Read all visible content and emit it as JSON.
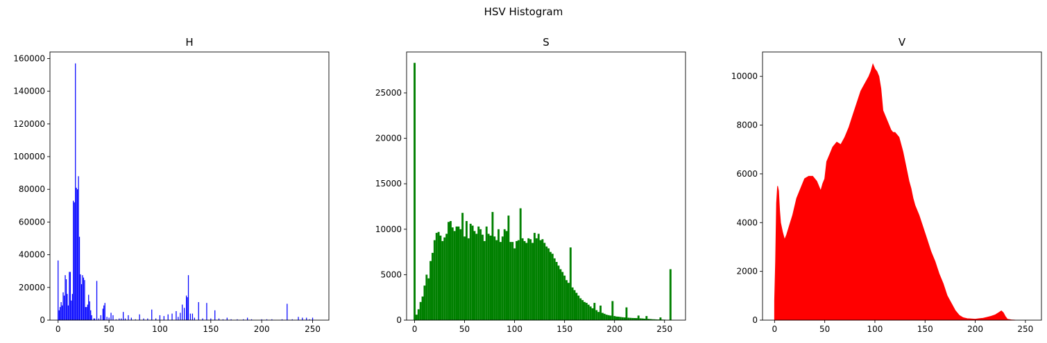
{
  "figure": {
    "title": "HSV Histogram"
  },
  "chart_data": [
    {
      "type": "bar",
      "title": "H",
      "color": "#0000ff",
      "xlim": [
        -8,
        266
      ],
      "ylim": [
        0,
        164000
      ],
      "xticks": [
        0,
        50,
        100,
        150,
        200,
        250
      ],
      "yticks": [
        0,
        20000,
        40000,
        60000,
        80000,
        100000,
        120000,
        140000,
        160000
      ],
      "points": [
        [
          0,
          36500
        ],
        [
          1,
          6000
        ],
        [
          2,
          8000
        ],
        [
          3,
          11000
        ],
        [
          4,
          9000
        ],
        [
          5,
          17000
        ],
        [
          6,
          15000
        ],
        [
          7,
          27500
        ],
        [
          8,
          25000
        ],
        [
          9,
          16000
        ],
        [
          10,
          9000
        ],
        [
          11,
          29500
        ],
        [
          12,
          29500
        ],
        [
          13,
          12000
        ],
        [
          14,
          16000
        ],
        [
          15,
          73000
        ],
        [
          16,
          72000
        ],
        [
          17,
          157000
        ],
        [
          18,
          81000
        ],
        [
          19,
          80000
        ],
        [
          20,
          88000
        ],
        [
          21,
          51000
        ],
        [
          22,
          28000
        ],
        [
          23,
          22000
        ],
        [
          24,
          27500
        ],
        [
          25,
          26000
        ],
        [
          26,
          24500
        ],
        [
          27,
          8000
        ],
        [
          28,
          8000
        ],
        [
          29,
          9500
        ],
        [
          30,
          15500
        ],
        [
          31,
          11500
        ],
        [
          32,
          6000
        ],
        [
          33,
          3000
        ],
        [
          35,
          1000
        ],
        [
          36,
          1000
        ],
        [
          38,
          24000
        ],
        [
          40,
          1000
        ],
        [
          42,
          3000
        ],
        [
          44,
          7000
        ],
        [
          45,
          9000
        ],
        [
          46,
          10500
        ],
        [
          48,
          2000
        ],
        [
          50,
          1500
        ],
        [
          52,
          4500
        ],
        [
          54,
          3000
        ],
        [
          57,
          500
        ],
        [
          60,
          1000
        ],
        [
          62,
          1000
        ],
        [
          64,
          5000
        ],
        [
          66,
          1000
        ],
        [
          69,
          3000
        ],
        [
          72,
          1500
        ],
        [
          76,
          500
        ],
        [
          80,
          3500
        ],
        [
          84,
          1000
        ],
        [
          88,
          1000
        ],
        [
          92,
          6500
        ],
        [
          96,
          1000
        ],
        [
          100,
          3000
        ],
        [
          104,
          2500
        ],
        [
          108,
          3500
        ],
        [
          112,
          4000
        ],
        [
          116,
          5500
        ],
        [
          118,
          2000
        ],
        [
          120,
          4500
        ],
        [
          122,
          9500
        ],
        [
          124,
          7500
        ],
        [
          126,
          15000
        ],
        [
          127,
          14000
        ],
        [
          128,
          27500
        ],
        [
          130,
          4000
        ],
        [
          132,
          4000
        ],
        [
          134,
          1500
        ],
        [
          138,
          11000
        ],
        [
          142,
          1000
        ],
        [
          146,
          10500
        ],
        [
          150,
          1000
        ],
        [
          154,
          6000
        ],
        [
          158,
          1000
        ],
        [
          162,
          500
        ],
        [
          166,
          1500
        ],
        [
          170,
          500
        ],
        [
          176,
          500
        ],
        [
          182,
          500
        ],
        [
          186,
          1500
        ],
        [
          190,
          500
        ],
        [
          200,
          500
        ],
        [
          205,
          500
        ],
        [
          210,
          500
        ],
        [
          220,
          500
        ],
        [
          225,
          10000
        ],
        [
          230,
          500
        ],
        [
          236,
          2000
        ],
        [
          240,
          1500
        ],
        [
          244,
          1500
        ],
        [
          247,
          500
        ],
        [
          250,
          1500
        ]
      ]
    },
    {
      "type": "bar",
      "title": "S",
      "color": "#008000",
      "xlim": [
        -8,
        271
      ],
      "ylim": [
        0,
        29500
      ],
      "xticks": [
        0,
        50,
        100,
        150,
        200,
        250
      ],
      "yticks": [
        0,
        5000,
        10000,
        15000,
        20000,
        25000
      ],
      "points": [
        [
          0,
          28300
        ],
        [
          2,
          600
        ],
        [
          4,
          1200
        ],
        [
          6,
          2000
        ],
        [
          8,
          2600
        ],
        [
          10,
          3800
        ],
        [
          12,
          5000
        ],
        [
          14,
          4600
        ],
        [
          16,
          6500
        ],
        [
          18,
          7400
        ],
        [
          20,
          8800
        ],
        [
          22,
          9600
        ],
        [
          24,
          9700
        ],
        [
          26,
          9300
        ],
        [
          28,
          8700
        ],
        [
          30,
          9100
        ],
        [
          32,
          9500
        ],
        [
          34,
          10800
        ],
        [
          36,
          10900
        ],
        [
          38,
          10200
        ],
        [
          40,
          9800
        ],
        [
          42,
          10300
        ],
        [
          44,
          10300
        ],
        [
          46,
          10000
        ],
        [
          48,
          11800
        ],
        [
          50,
          9200
        ],
        [
          52,
          10900
        ],
        [
          54,
          9000
        ],
        [
          56,
          10600
        ],
        [
          58,
          10400
        ],
        [
          60,
          9800
        ],
        [
          62,
          9500
        ],
        [
          64,
          10300
        ],
        [
          66,
          10000
        ],
        [
          68,
          9400
        ],
        [
          70,
          8700
        ],
        [
          72,
          10300
        ],
        [
          74,
          9500
        ],
        [
          76,
          9300
        ],
        [
          78,
          11900
        ],
        [
          80,
          9200
        ],
        [
          82,
          8800
        ],
        [
          84,
          10000
        ],
        [
          86,
          8600
        ],
        [
          88,
          9200
        ],
        [
          90,
          10000
        ],
        [
          92,
          9800
        ],
        [
          94,
          11500
        ],
        [
          96,
          8600
        ],
        [
          98,
          8600
        ],
        [
          100,
          7900
        ],
        [
          102,
          8700
        ],
        [
          104,
          8800
        ],
        [
          106,
          12300
        ],
        [
          108,
          9000
        ],
        [
          110,
          8700
        ],
        [
          112,
          8500
        ],
        [
          114,
          9000
        ],
        [
          116,
          8900
        ],
        [
          118,
          8500
        ],
        [
          120,
          9600
        ],
        [
          122,
          9000
        ],
        [
          124,
          9500
        ],
        [
          126,
          8800
        ],
        [
          128,
          8900
        ],
        [
          130,
          8500
        ],
        [
          132,
          8100
        ],
        [
          134,
          7900
        ],
        [
          136,
          7500
        ],
        [
          138,
          7300
        ],
        [
          140,
          6800
        ],
        [
          142,
          6400
        ],
        [
          144,
          6000
        ],
        [
          146,
          5600
        ],
        [
          148,
          5300
        ],
        [
          150,
          4900
        ],
        [
          152,
          4400
        ],
        [
          154,
          4100
        ],
        [
          156,
          8000
        ],
        [
          158,
          3600
        ],
        [
          160,
          3300
        ],
        [
          162,
          3000
        ],
        [
          164,
          2700
        ],
        [
          166,
          2400
        ],
        [
          168,
          2200
        ],
        [
          170,
          2000
        ],
        [
          172,
          1900
        ],
        [
          174,
          1700
        ],
        [
          176,
          1500
        ],
        [
          178,
          1300
        ],
        [
          180,
          1900
        ],
        [
          182,
          1100
        ],
        [
          184,
          900
        ],
        [
          186,
          1600
        ],
        [
          188,
          800
        ],
        [
          190,
          700
        ],
        [
          192,
          600
        ],
        [
          194,
          550
        ],
        [
          196,
          500
        ],
        [
          198,
          2100
        ],
        [
          200,
          450
        ],
        [
          202,
          400
        ],
        [
          204,
          380
        ],
        [
          206,
          350
        ],
        [
          208,
          320
        ],
        [
          210,
          300
        ],
        [
          212,
          1400
        ],
        [
          214,
          270
        ],
        [
          216,
          250
        ],
        [
          218,
          240
        ],
        [
          220,
          230
        ],
        [
          222,
          220
        ],
        [
          224,
          500
        ],
        [
          226,
          200
        ],
        [
          228,
          180
        ],
        [
          230,
          160
        ],
        [
          232,
          450
        ],
        [
          234,
          140
        ],
        [
          236,
          120
        ],
        [
          238,
          100
        ],
        [
          240,
          90
        ],
        [
          242,
          80
        ],
        [
          244,
          70
        ],
        [
          246,
          300
        ],
        [
          248,
          60
        ],
        [
          250,
          50
        ],
        [
          252,
          40
        ],
        [
          254,
          30
        ],
        [
          256,
          5600
        ]
      ]
    },
    {
      "type": "area",
      "title": "V",
      "color": "#ff0000",
      "xlim": [
        -12,
        266
      ],
      "ylim": [
        0,
        11000
      ],
      "xticks": [
        0,
        50,
        100,
        150,
        200,
        250
      ],
      "yticks": [
        0,
        2000,
        4000,
        6000,
        8000,
        10000
      ],
      "points": [
        [
          0,
          800
        ],
        [
          1,
          2400
        ],
        [
          2,
          4800
        ],
        [
          3,
          5500
        ],
        [
          4,
          5300
        ],
        [
          5,
          4500
        ],
        [
          6,
          4000
        ],
        [
          8,
          3600
        ],
        [
          10,
          3300
        ],
        [
          12,
          3500
        ],
        [
          15,
          3900
        ],
        [
          18,
          4300
        ],
        [
          22,
          5000
        ],
        [
          26,
          5400
        ],
        [
          30,
          5800
        ],
        [
          34,
          5900
        ],
        [
          38,
          5900
        ],
        [
          42,
          5700
        ],
        [
          46,
          5300
        ],
        [
          48,
          5600
        ],
        [
          50,
          5800
        ],
        [
          52,
          6500
        ],
        [
          55,
          6800
        ],
        [
          58,
          7100
        ],
        [
          62,
          7300
        ],
        [
          66,
          7200
        ],
        [
          70,
          7500
        ],
        [
          74,
          7900
        ],
        [
          78,
          8400
        ],
        [
          82,
          8900
        ],
        [
          86,
          9400
        ],
        [
          90,
          9700
        ],
        [
          94,
          10000
        ],
        [
          96,
          10200
        ],
        [
          98,
          10500
        ],
        [
          100,
          10300
        ],
        [
          102,
          10200
        ],
        [
          104,
          10000
        ],
        [
          106,
          9500
        ],
        [
          108,
          8600
        ],
        [
          110,
          8400
        ],
        [
          112,
          8200
        ],
        [
          114,
          8000
        ],
        [
          116,
          7800
        ],
        [
          118,
          7700
        ],
        [
          120,
          7700
        ],
        [
          122,
          7600
        ],
        [
          124,
          7500
        ],
        [
          126,
          7200
        ],
        [
          128,
          6900
        ],
        [
          130,
          6500
        ],
        [
          132,
          6100
        ],
        [
          134,
          5700
        ],
        [
          136,
          5400
        ],
        [
          138,
          5000
        ],
        [
          140,
          4700
        ],
        [
          144,
          4300
        ],
        [
          148,
          3800
        ],
        [
          152,
          3300
        ],
        [
          156,
          2800
        ],
        [
          160,
          2400
        ],
        [
          164,
          1900
        ],
        [
          168,
          1500
        ],
        [
          172,
          1000
        ],
        [
          176,
          700
        ],
        [
          180,
          400
        ],
        [
          184,
          200
        ],
        [
          188,
          100
        ],
        [
          192,
          60
        ],
        [
          196,
          50
        ],
        [
          200,
          40
        ],
        [
          204,
          60
        ],
        [
          208,
          80
        ],
        [
          212,
          120
        ],
        [
          216,
          160
        ],
        [
          220,
          220
        ],
        [
          224,
          320
        ],
        [
          226,
          380
        ],
        [
          228,
          300
        ],
        [
          230,
          150
        ],
        [
          232,
          40
        ],
        [
          236,
          10
        ],
        [
          240,
          0
        ]
      ]
    }
  ]
}
